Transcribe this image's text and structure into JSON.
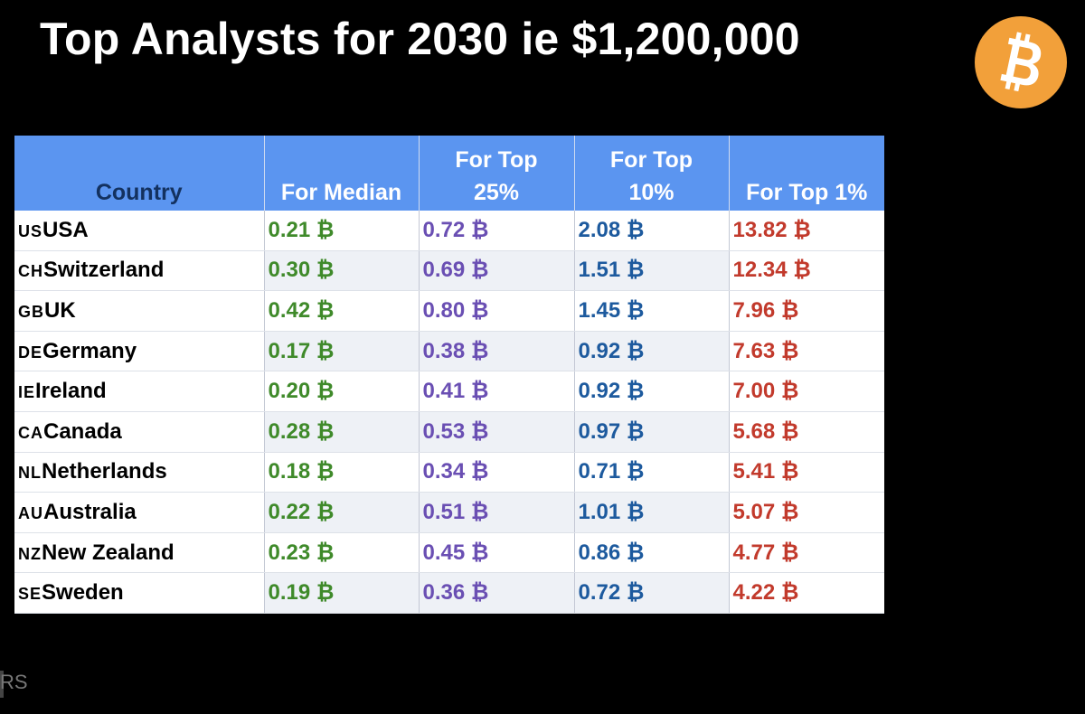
{
  "title": "Top Analysts for 2030 ie $1,200,000",
  "logo": {
    "icon": "bitcoin-logo",
    "color": "#f2a03a",
    "glyph": "₿"
  },
  "table": {
    "headers": [
      "Country",
      "For Median",
      "For Top 25%",
      "For Top 10%",
      "For Top 1%"
    ],
    "rows": [
      {
        "code": "US",
        "country": "USA",
        "median": "0.21 ₿",
        "top25": "0.72 ₿",
        "top10": "2.08 ₿",
        "top1": "13.82 ₿"
      },
      {
        "code": "CH",
        "country": "Switzerland",
        "median": "0.30 ₿",
        "top25": "0.69 ₿",
        "top10": "1.51 ₿",
        "top1": "12.34 ₿"
      },
      {
        "code": "GB",
        "country": "UK",
        "median": "0.42 ₿",
        "top25": "0.80 ₿",
        "top10": "1.45 ₿",
        "top1": "7.96 ₿"
      },
      {
        "code": "DE",
        "country": "Germany",
        "median": "0.17 ₿",
        "top25": "0.38 ₿",
        "top10": "0.92 ₿",
        "top1": "7.63 ₿"
      },
      {
        "code": "IE",
        "country": "Ireland",
        "median": "0.20 ₿",
        "top25": "0.41 ₿",
        "top10": "0.92 ₿",
        "top1": "7.00 ₿"
      },
      {
        "code": "CA",
        "country": "Canada",
        "median": "0.28 ₿",
        "top25": "0.53 ₿",
        "top10": "0.97 ₿",
        "top1": "5.68 ₿"
      },
      {
        "code": "NL",
        "country": "Netherlands",
        "median": "0.18 ₿",
        "top25": "0.34 ₿",
        "top10": "0.71 ₿",
        "top1": "5.41 ₿"
      },
      {
        "code": "AU",
        "country": "Australia",
        "median": "0.22 ₿",
        "top25": "0.51 ₿",
        "top10": "1.01 ₿",
        "top1": "5.07 ₿"
      },
      {
        "code": "NZ",
        "country": "New Zealand",
        "median": "0.23 ₿",
        "top25": "0.45 ₿",
        "top10": "0.86 ₿",
        "top1": "4.77 ₿"
      },
      {
        "code": "SE",
        "country": "Sweden",
        "median": "0.19 ₿",
        "top25": "0.36 ₿",
        "top10": "0.72 ₿",
        "top1": "4.22 ₿"
      }
    ],
    "colors": {
      "header_bg": "#5b95f0",
      "median": "#3f8a2a",
      "top25": "#6a4fb3",
      "top10": "#1d5a9e",
      "top1": "#c23a2c"
    }
  },
  "footer": {
    "partial_text": "RS"
  }
}
